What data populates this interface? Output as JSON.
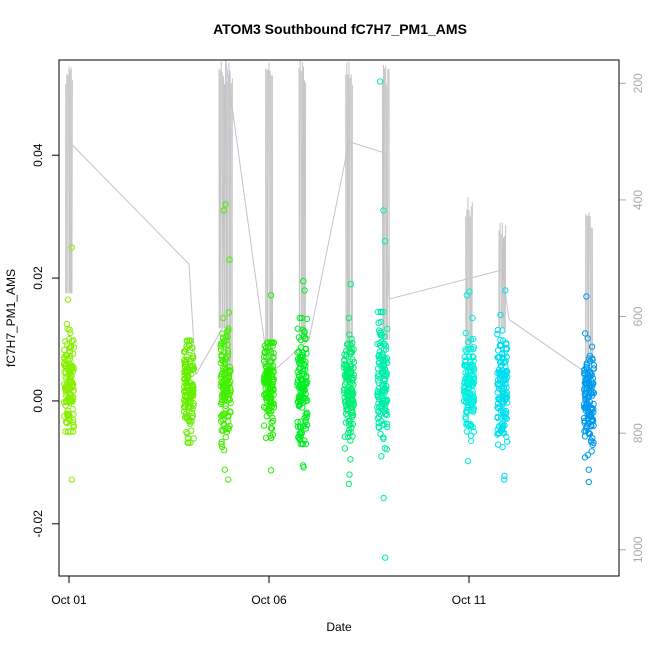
{
  "chart_data": {
    "type": "scatter",
    "title": "ATOM3 Southbound fC7H7_PM1_AMS",
    "xlabel": "Date",
    "ylabel": "fC7H7_PM1_AMS",
    "x_axis": {
      "type": "date",
      "range": [
        "2016-09-30T18:00",
        "2016-10-14T18:00"
      ],
      "ticks": [
        {
          "value": "2016-10-01T00:00",
          "label": "Oct 01"
        },
        {
          "value": "2016-10-06T00:00",
          "label": "Oct 06"
        },
        {
          "value": "2016-10-11T00:00",
          "label": "Oct 11"
        }
      ]
    },
    "y_axis": {
      "range": [
        -0.0285,
        0.0555
      ],
      "ticks": [
        {
          "value": -0.02,
          "label": "-0.02"
        },
        {
          "value": 0.0,
          "label": "0.00"
        },
        {
          "value": 0.02,
          "label": "0.02"
        },
        {
          "value": 0.04,
          "label": "0.04"
        }
      ]
    },
    "y2_axis": {
      "label": "",
      "reversed": true,
      "range": [
        160,
        1045
      ],
      "ticks": [
        {
          "value": 200,
          "label": "200"
        },
        {
          "value": 400,
          "label": "400"
        },
        {
          "value": 600,
          "label": "600"
        },
        {
          "value": 800,
          "label": "800"
        },
        {
          "value": 1000,
          "label": "1000"
        }
      ],
      "color": "#aaaaaa"
    },
    "grid": false,
    "legend": "none",
    "clusters": [
      {
        "x": "2016-10-01T00:00",
        "center": 0.003,
        "spread": 0.004,
        "min": -0.005,
        "max": 0.0125,
        "outliers": [
          0.025,
          0.0165,
          -0.0128
        ],
        "color": "#88ee00"
      },
      {
        "x": "2016-10-04T00:00",
        "center": 0.002,
        "spread": 0.004,
        "min": -0.0068,
        "max": 0.0098,
        "outliers": [],
        "color": "#66ee00"
      },
      {
        "x": "2016-10-04T22:00",
        "center": 0.003,
        "spread": 0.005,
        "min": -0.008,
        "max": 0.023,
        "outliers": [
          0.032,
          0.031,
          -0.0112,
          -0.0128
        ],
        "color": "#44ee00"
      },
      {
        "x": "2016-10-06T00:00",
        "center": 0.003,
        "spread": 0.004,
        "min": -0.006,
        "max": 0.0095,
        "outliers": [
          0.0172,
          -0.0113
        ],
        "color": "#22ee00"
      },
      {
        "x": "2016-10-06T20:00",
        "center": 0.003,
        "spread": 0.005,
        "min": -0.007,
        "max": 0.0135,
        "outliers": [
          0.0195,
          0.018,
          -0.0105,
          -0.0108
        ],
        "color": "#00ee22"
      },
      {
        "x": "2016-10-08T00:00",
        "center": 0.002,
        "spread": 0.0045,
        "min": -0.0095,
        "max": 0.0135,
        "outliers": [
          0.019,
          -0.012,
          -0.0135
        ],
        "color": "#00ee77"
      },
      {
        "x": "2016-10-08T20:00",
        "center": 0.003,
        "spread": 0.005,
        "min": -0.009,
        "max": 0.0145,
        "outliers": [
          0.052,
          0.031,
          0.026,
          -0.0158,
          -0.0255
        ],
        "color": "#00eeaa"
      },
      {
        "x": "2016-10-11T00:00",
        "center": 0.003,
        "spread": 0.004,
        "min": -0.0065,
        "max": 0.0135,
        "outliers": [
          0.0178,
          0.0172,
          -0.0098
        ],
        "color": "#00eedd"
      },
      {
        "x": "2016-10-11T20:00",
        "center": 0.002,
        "spread": 0.0045,
        "min": -0.0075,
        "max": 0.014,
        "outliers": [
          0.018,
          -0.0122,
          -0.0128
        ],
        "color": "#00ddee"
      },
      {
        "x": "2016-10-14T00:00",
        "center": 0.001,
        "spread": 0.0045,
        "min": -0.0092,
        "max": 0.011,
        "outliers": [
          0.017,
          -0.0112,
          -0.0132
        ],
        "color": "#0099ee"
      }
    ],
    "altitude_trace": {
      "color": "#c8bfd0",
      "points": [
        {
          "x": "2016-10-01T00:00",
          "y2": 300
        },
        {
          "x": "2016-10-04T00:00",
          "y2": 510
        },
        {
          "x": "2016-10-04T04:00",
          "y2": 700
        },
        {
          "x": "2016-10-04T20:00",
          "y2": 620
        },
        {
          "x": "2016-10-04T22:00",
          "y2": 160
        },
        {
          "x": "2016-10-06T00:00",
          "y2": 700
        },
        {
          "x": "2016-10-07T00:00",
          "y2": 640
        },
        {
          "x": "2016-10-08T00:00",
          "y2": 300
        },
        {
          "x": "2016-10-08T22:00",
          "y2": 320
        },
        {
          "x": "2016-10-09T00:00",
          "y2": 570
        },
        {
          "x": "2016-10-11T20:00",
          "y2": 520
        },
        {
          "x": "2016-10-12T00:00",
          "y2": 605
        },
        {
          "x": "2016-10-14T00:00",
          "y2": 700
        }
      ],
      "spikes": [
        {
          "x": "2016-10-01T00:00",
          "y2_top": 160,
          "y2_bottom": 560
        },
        {
          "x": "2016-10-04T20:00",
          "y2_top": 160,
          "y2_bottom": 620
        },
        {
          "x": "2016-10-05T00:00",
          "y2_top": 160,
          "y2_bottom": 700
        },
        {
          "x": "2016-10-06T00:00",
          "y2_top": 160,
          "y2_bottom": 700
        },
        {
          "x": "2016-10-06T20:00",
          "y2_top": 160,
          "y2_bottom": 640
        },
        {
          "x": "2016-10-08T00:00",
          "y2_top": 160,
          "y2_bottom": 660
        },
        {
          "x": "2016-10-08T22:00",
          "y2_top": 160,
          "y2_bottom": 640
        },
        {
          "x": "2016-10-11T00:00",
          "y2_top": 390,
          "y2_bottom": 660
        },
        {
          "x": "2016-10-11T20:00",
          "y2_top": 430,
          "y2_bottom": 620
        },
        {
          "x": "2016-10-14T00:00",
          "y2_top": 410,
          "y2_bottom": 680
        }
      ]
    }
  }
}
